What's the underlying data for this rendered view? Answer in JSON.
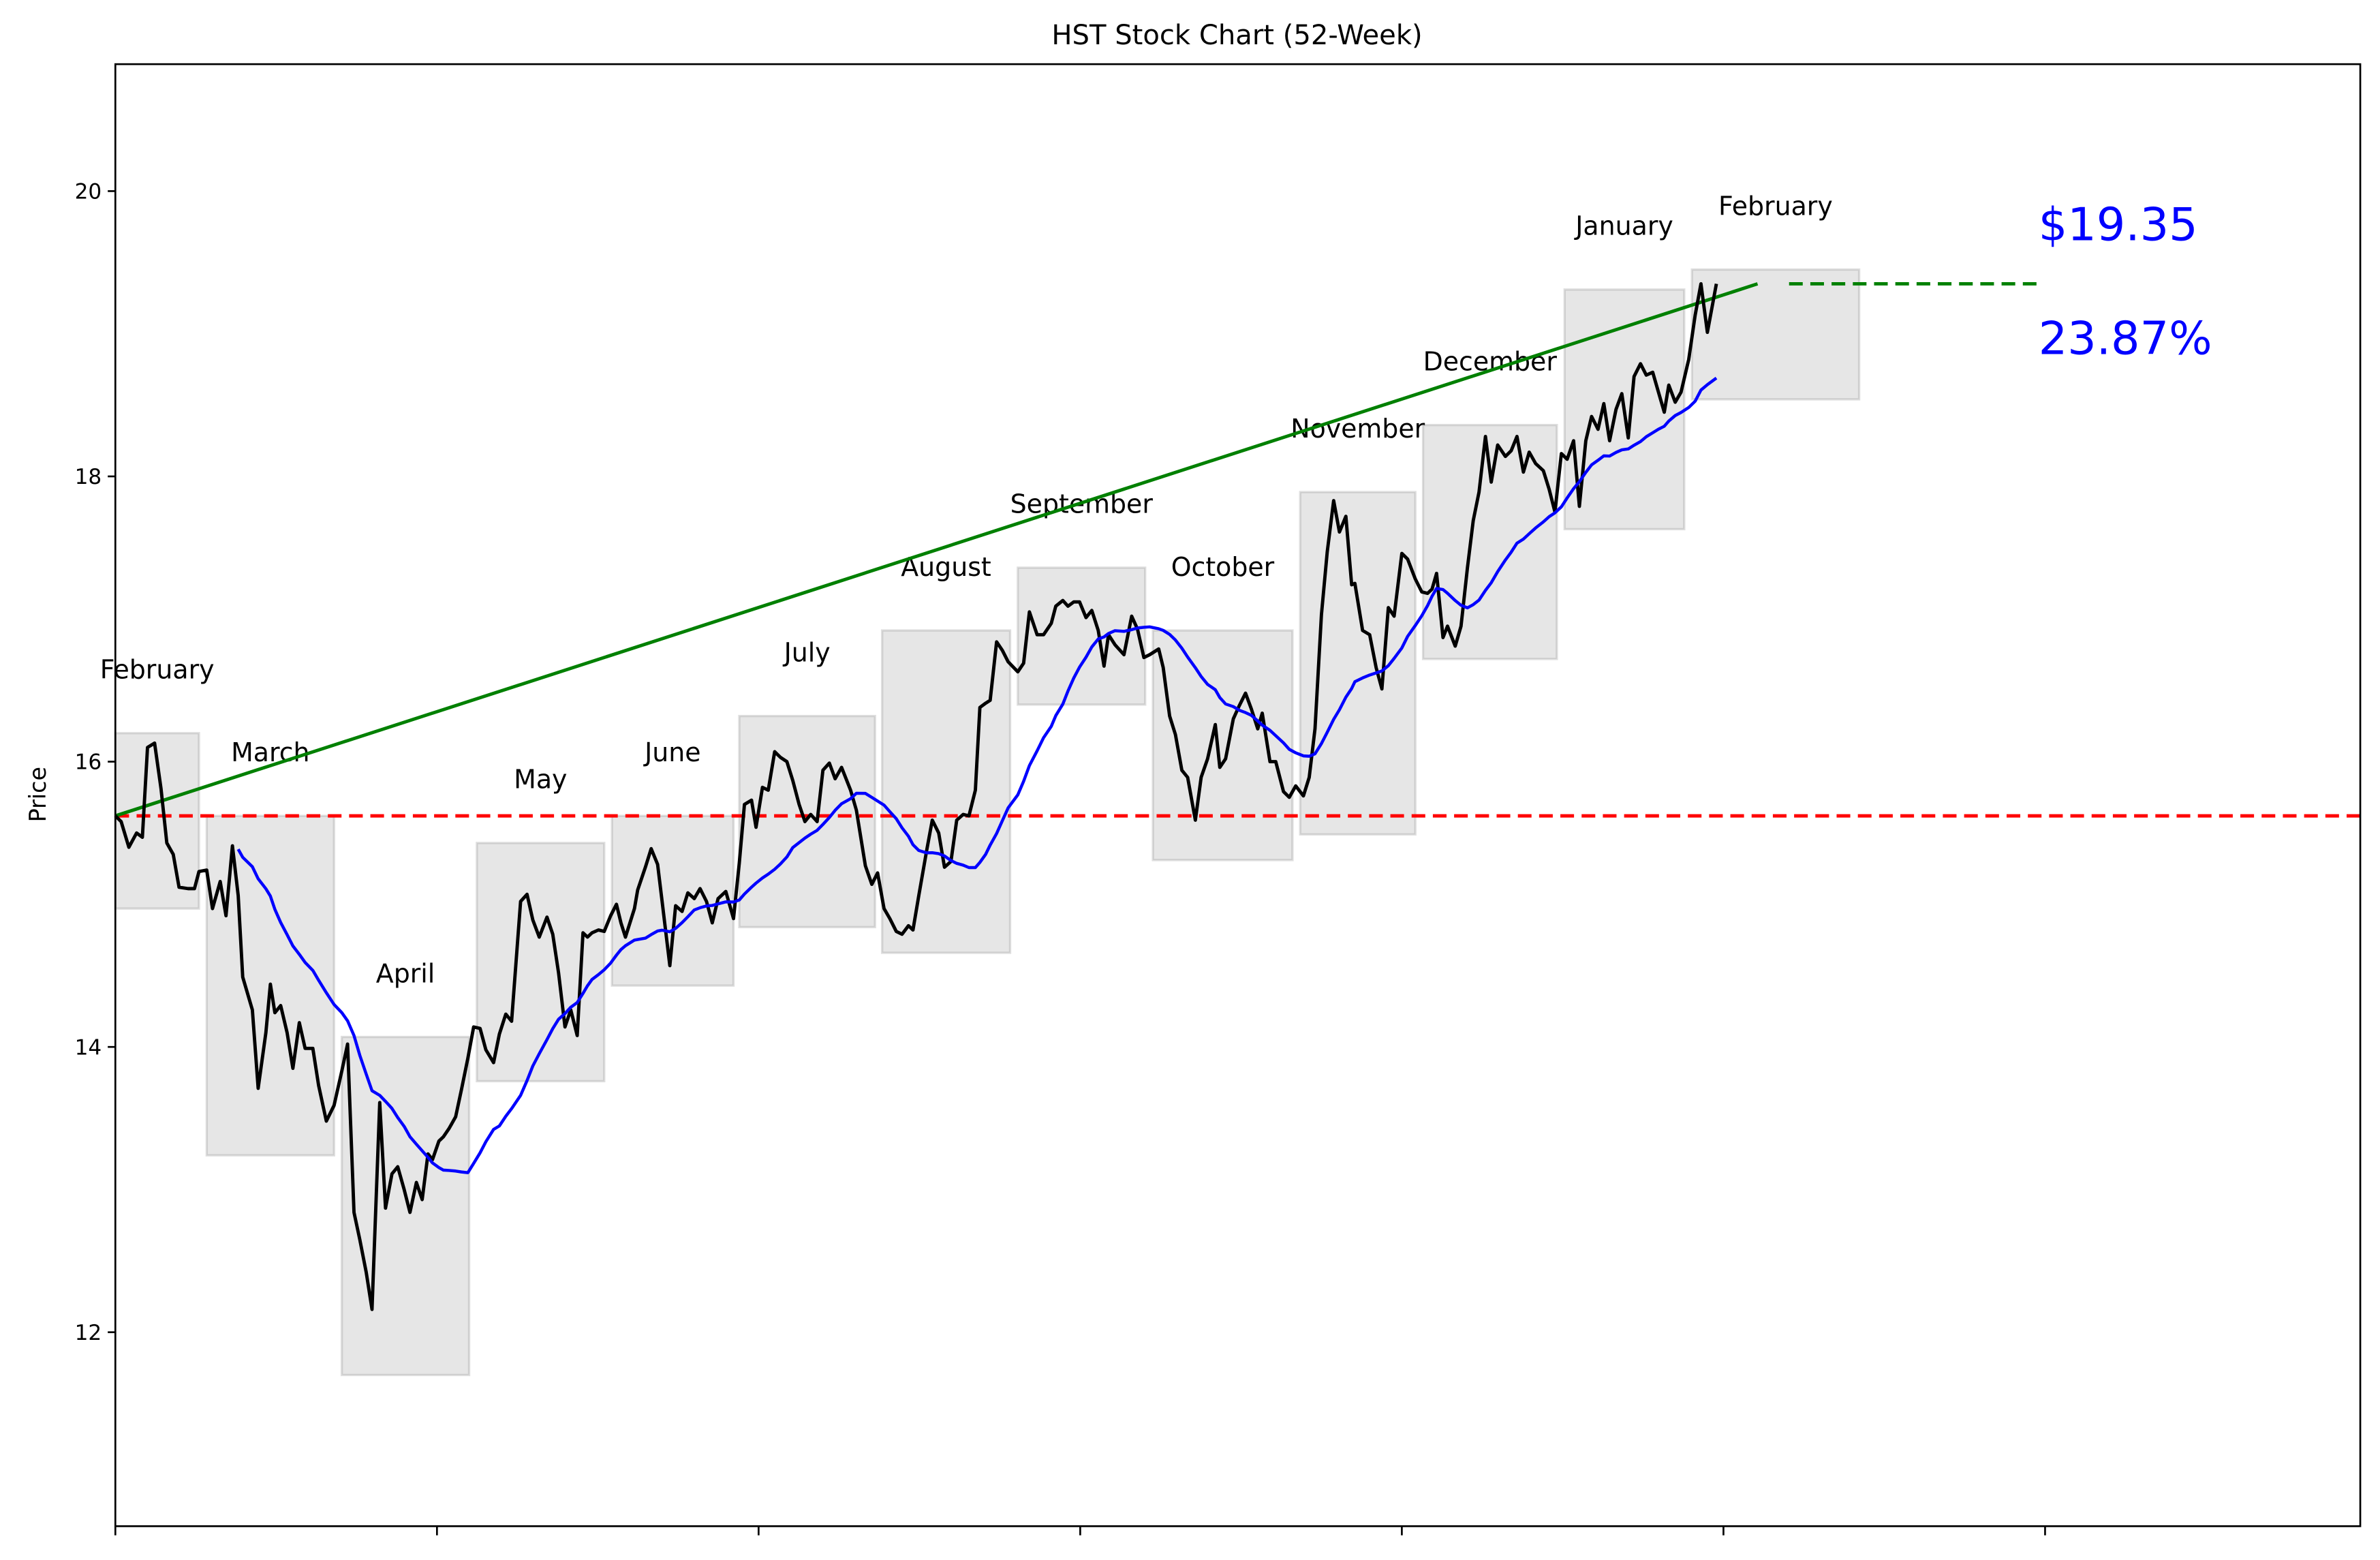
{
  "chart_data": {
    "type": "line",
    "title": "HST Stock Chart (52-Week)",
    "xlabel": "",
    "ylabel": "Price",
    "xlim": [
      0,
      349
    ],
    "ylim": [
      10.64,
      20.89
    ],
    "xticks": [
      0,
      50,
      100,
      150,
      200,
      250,
      300
    ],
    "yticks": [
      12,
      14,
      16,
      18,
      20
    ],
    "ytick_labels": [
      "12",
      "14",
      "16",
      "18",
      "20"
    ],
    "grid": false,
    "colors": {
      "price": "#000000",
      "moving_average": "#0000ff",
      "trend": "#008000",
      "baseline": "#ff0000",
      "month_box": "#808080",
      "annotation": "#0000ff"
    },
    "price": {
      "x": [
        0,
        0.9,
        2.1,
        3.3,
        4.2,
        5.0,
        6.1,
        7.1,
        8.0,
        9.0,
        9.9,
        11.3,
        12.3,
        13.0,
        14.2,
        15.1,
        16.3,
        17.2,
        18.2,
        19.1,
        19.8,
        21.3,
        22.2,
        23.4,
        24.1,
        24.8,
        25.7,
        26.7,
        27.6,
        28.6,
        29.5,
        30.7,
        31.6,
        32.8,
        34.0,
        35.2,
        36.1,
        37.1,
        38.0,
        39.0,
        39.9,
        41.1,
        42.0,
        43.0,
        43.9,
        44.9,
        45.8,
        46.8,
        47.7,
        48.6,
        49.3,
        50.3,
        51.0,
        51.9,
        52.9,
        53.8,
        54.8,
        55.7,
        56.7,
        57.6,
        58.8,
        59.7,
        60.7,
        61.6,
        63.0,
        64.0,
        64.9,
        65.9,
        67.1,
        68.0,
        68.9,
        69.9,
        70.8,
        71.8,
        72.7,
        73.4,
        74.1,
        75.1,
        76.0,
        77.0,
        77.9,
        78.6,
        79.3,
        80.7,
        81.2,
        82.4,
        83.3,
        84.3,
        85.0,
        86.2,
        87.1,
        88.1,
        89.0,
        90.0,
        90.9,
        91.9,
        92.8,
        93.7,
        94.9,
        96.1,
        97.0,
        97.8,
        98.9,
        99.6,
        100.6,
        101.5,
        102.5,
        103.4,
        104.4,
        105.3,
        106.3,
        107.2,
        108.1,
        109.1,
        110.0,
        111.0,
        111.9,
        112.9,
        114.3,
        115.2,
        116.6,
        117.6,
        118.5,
        119.5,
        120.4,
        121.4,
        122.3,
        123.3,
        124.0,
        124.9,
        126.1,
        127.0,
        128.0,
        128.9,
        129.9,
        130.8,
        131.8,
        132.7,
        133.7,
        134.4,
        135.3,
        136.0,
        137.0,
        137.9,
        138.8,
        140.3,
        141.2,
        142.1,
        143.3,
        144.3,
        145.5,
        146.2,
        147.3,
        148.1,
        149.0,
        149.9,
        150.9,
        151.8,
        152.8,
        153.7,
        154.4,
        155.4,
        156.8,
        158.0,
        158.9,
        159.9,
        160.8,
        162.2,
        162.9,
        163.9,
        164.8,
        165.8,
        166.7,
        167.9,
        168.8,
        169.8,
        171.0,
        171.7,
        172.6,
        173.8,
        174.7,
        175.7,
        176.6,
        177.6,
        178.3,
        179.5,
        180.4,
        181.6,
        182.5,
        183.5,
        184.7,
        185.6,
        186.5,
        187.5,
        188.4,
        189.4,
        190.3,
        191.3,
        192.2,
        192.7,
        193.9,
        195.0,
        196.0,
        196.9,
        197.9,
        198.8,
        200.0,
        200.9,
        202.1,
        203.1,
        204.0,
        204.7,
        205.4,
        206.4,
        207.1,
        208.3,
        209.2,
        210.2,
        211.1,
        212.0,
        213.0,
        213.9,
        214.9,
        216.1,
        217.0,
        217.9,
        218.9,
        219.8,
        220.8,
        222.0,
        222.9,
        223.8,
        224.8,
        225.7,
        226.7,
        227.6,
        228.6,
        229.5,
        230.5,
        231.4,
        232.3,
        233.3,
        234.2,
        235.2,
        236.1,
        237.1,
        238.0,
        239.0,
        239.9,
        240.8,
        241.5,
        242.5,
        243.4,
        244.6,
        245.6,
        246.5,
        247.5,
        248.9
      ],
      "y": [
        15.62,
        15.58,
        15.4,
        15.5,
        15.47,
        16.1,
        16.13,
        15.81,
        15.43,
        15.35,
        15.12,
        15.11,
        15.11,
        15.23,
        15.24,
        14.97,
        15.16,
        14.92,
        15.41,
        15.06,
        14.49,
        14.26,
        13.71,
        14.1,
        14.44,
        14.24,
        14.29,
        14.1,
        13.85,
        14.17,
        13.99,
        13.99,
        13.73,
        13.48,
        13.59,
        13.83,
        14.02,
        12.84,
        12.65,
        12.42,
        12.16,
        13.61,
        12.87,
        13.11,
        13.16,
        13.0,
        12.84,
        13.05,
        12.93,
        13.25,
        13.21,
        13.34,
        13.37,
        13.43,
        13.51,
        13.7,
        13.92,
        14.14,
        14.13,
        13.98,
        13.89,
        14.09,
        14.23,
        14.18,
        15.02,
        15.07,
        14.89,
        14.77,
        14.91,
        14.79,
        14.52,
        14.14,
        14.26,
        14.08,
        14.8,
        14.77,
        14.8,
        14.82,
        14.81,
        14.92,
        15.0,
        14.87,
        14.77,
        14.97,
        15.1,
        15.26,
        15.39,
        15.28,
        15.02,
        14.57,
        14.99,
        14.95,
        15.08,
        15.04,
        15.11,
        15.02,
        14.87,
        15.04,
        15.09,
        14.9,
        15.29,
        15.7,
        15.73,
        15.54,
        15.82,
        15.8,
        16.07,
        16.03,
        16.0,
        15.87,
        15.7,
        15.58,
        15.63,
        15.58,
        15.94,
        15.99,
        15.88,
        15.96,
        15.8,
        15.66,
        15.27,
        15.14,
        15.22,
        14.97,
        14.9,
        14.81,
        14.79,
        14.85,
        14.82,
        15.06,
        15.37,
        15.59,
        15.5,
        15.26,
        15.3,
        15.59,
        15.63,
        15.62,
        15.8,
        16.38,
        16.41,
        16.43,
        16.84,
        16.78,
        16.7,
        16.63,
        16.69,
        17.05,
        16.89,
        16.89,
        16.97,
        17.09,
        17.13,
        17.09,
        17.12,
        17.12,
        17.01,
        17.06,
        16.92,
        16.67,
        16.89,
        16.82,
        16.75,
        17.02,
        16.93,
        16.73,
        16.75,
        16.79,
        16.66,
        16.32,
        16.19,
        15.94,
        15.89,
        15.59,
        15.89,
        16.02,
        16.26,
        15.96,
        16.02,
        16.3,
        16.39,
        16.48,
        16.37,
        16.23,
        16.34,
        16.0,
        16.0,
        15.79,
        15.75,
        15.83,
        15.76,
        15.89,
        16.23,
        17.03,
        17.47,
        17.83,
        17.61,
        17.72,
        17.24,
        17.25,
        16.92,
        16.89,
        16.66,
        16.51,
        17.08,
        17.02,
        17.46,
        17.42,
        17.28,
        17.19,
        17.18,
        17.21,
        17.32,
        16.87,
        16.95,
        16.81,
        16.95,
        17.36,
        17.69,
        17.89,
        18.28,
        17.96,
        18.22,
        18.14,
        18.18,
        18.28,
        18.03,
        18.17,
        18.09,
        18.04,
        17.91,
        17.75,
        18.16,
        18.12,
        18.25,
        17.79,
        18.25,
        18.42,
        18.33,
        18.51,
        18.25,
        18.47,
        18.58,
        18.27,
        18.7,
        18.79,
        18.71,
        18.73,
        18.59,
        18.45,
        18.64,
        18.52,
        18.59,
        18.82,
        19.13,
        19.35,
        19.01,
        19.35
      ]
    },
    "moving_average_window": 20,
    "trend_line": {
      "x": [
        0,
        255.3
      ],
      "y": [
        15.62,
        19.35
      ]
    },
    "current_price_line": {
      "x": [
        260.2,
        298.9
      ],
      "y": 19.35
    },
    "baseline_price": 15.62,
    "months": [
      {
        "label": "February",
        "x0": 0,
        "x1": 13.0,
        "low": 14.97,
        "high": 16.2
      },
      {
        "label": "March",
        "x0": 14.2,
        "x1": 34.0,
        "low": 13.24,
        "high": 15.62
      },
      {
        "label": "April",
        "x0": 35.2,
        "x1": 55.0,
        "low": 11.7,
        "high": 14.07
      },
      {
        "label": "May",
        "x0": 56.2,
        "x1": 76.0,
        "low": 13.76,
        "high": 15.43
      },
      {
        "label": "June",
        "x0": 77.2,
        "x1": 96.1,
        "low": 14.43,
        "high": 15.62
      },
      {
        "label": "July",
        "x0": 97.0,
        "x1": 118.1,
        "low": 14.84,
        "high": 16.32
      },
      {
        "label": "August",
        "x0": 119.2,
        "x1": 139.1,
        "low": 14.66,
        "high": 16.92
      },
      {
        "label": "September",
        "x0": 140.3,
        "x1": 160.1,
        "low": 16.4,
        "high": 17.36
      },
      {
        "label": "October",
        "x0": 161.3,
        "x1": 183.0,
        "low": 15.31,
        "high": 16.92
      },
      {
        "label": "November",
        "x0": 184.2,
        "x1": 202.1,
        "low": 15.49,
        "high": 17.89
      },
      {
        "label": "December",
        "x0": 203.3,
        "x1": 224.1,
        "low": 16.72,
        "high": 18.36
      },
      {
        "label": "January",
        "x0": 225.3,
        "x1": 243.9,
        "low": 17.63,
        "high": 19.31
      },
      {
        "label": "February",
        "x0": 245.1,
        "x1": 271.1,
        "low": 18.54,
        "high": 19.45
      }
    ],
    "annotations": {
      "price_label": "$19.35",
      "change_label": "23.87%"
    }
  }
}
